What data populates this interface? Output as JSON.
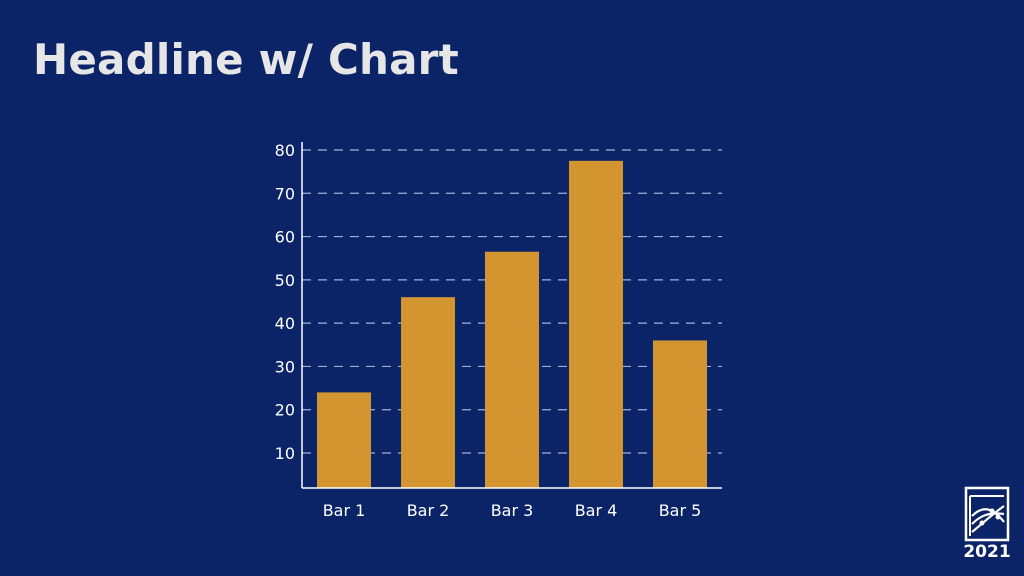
{
  "slide": {
    "headline": "Headline w/ Chart",
    "background_color": "#0b2468",
    "headline_color": "#e6e6e6"
  },
  "logo": {
    "year": "2021",
    "icon": "chart-logo-icon"
  },
  "chart_data": {
    "type": "bar",
    "categories": [
      "Bar 1",
      "Bar 2",
      "Bar 3",
      "Bar 4",
      "Bar 5"
    ],
    "values": [
      24,
      46,
      56.5,
      77.5,
      36
    ],
    "title": "",
    "xlabel": "",
    "ylabel": "",
    "ylim": [
      0,
      80
    ],
    "yticks": [
      10,
      20,
      30,
      40,
      50,
      60,
      70,
      80
    ],
    "grid": true,
    "grid_style": "dashed",
    "legend": "none",
    "bar_color": "#d39530",
    "axis_color": "#ffffff",
    "grid_color": "#9fb0d8"
  }
}
